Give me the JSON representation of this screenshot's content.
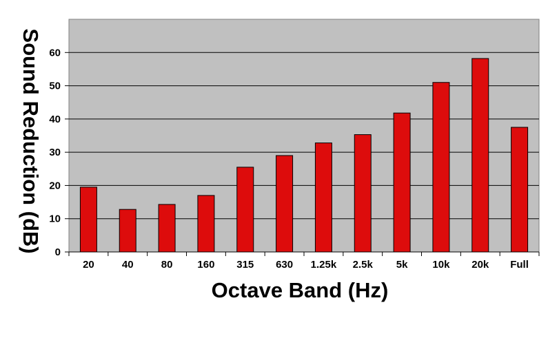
{
  "chart_data": {
    "type": "bar",
    "title": "",
    "xlabel": "Octave Band (Hz)",
    "ylabel": "Sound Reduction (dB)",
    "categories": [
      "20",
      "40",
      "80",
      "160",
      "315",
      "630",
      "1.25k",
      "2.5k",
      "5k",
      "10k",
      "20k",
      "Full"
    ],
    "values": [
      19.5,
      12.8,
      14.3,
      17.0,
      25.5,
      29.0,
      32.8,
      35.3,
      41.8,
      51.0,
      58.2,
      37.5
    ],
    "ylim": [
      0,
      70
    ],
    "yticks": [
      0,
      10,
      20,
      30,
      40,
      50,
      60
    ],
    "grid": true,
    "legend": "none",
    "colors": {
      "bar": "#dd0c0c",
      "bar_stroke": "#000000",
      "plot_background": "#c0c0c0",
      "grid": "#000000"
    }
  }
}
